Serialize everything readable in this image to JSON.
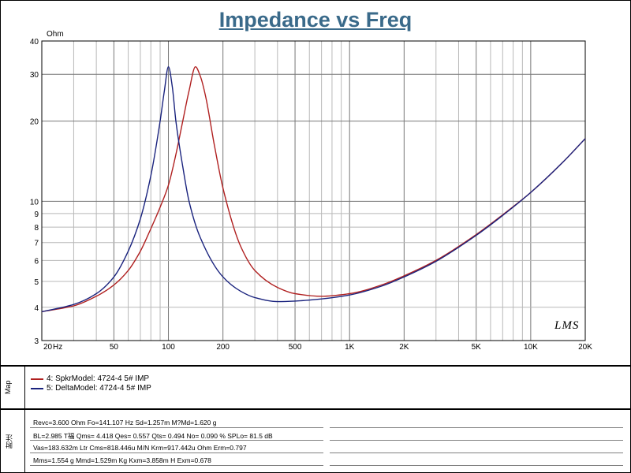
{
  "chart_data": {
    "type": "line",
    "title": "Impedance vs Freq",
    "xlabel": "Hz",
    "ylabel": "Ohm",
    "xscale": "log",
    "yscale": "log",
    "xlim": [
      20,
      20000
    ],
    "ylim": [
      3,
      40
    ],
    "grid": true,
    "x_tick_labels": [
      "20",
      "50",
      "100",
      "200",
      "500",
      "1K",
      "2K",
      "5K",
      "10K",
      "20K"
    ],
    "x_tick_values": [
      20,
      50,
      100,
      200,
      500,
      1000,
      2000,
      5000,
      10000,
      20000
    ],
    "y_tick_labels": [
      "3",
      "4",
      "5",
      "6",
      "7",
      "8",
      "9",
      "10",
      "20",
      "30",
      "40"
    ],
    "y_tick_values": [
      3,
      4,
      5,
      6,
      7,
      8,
      9,
      10,
      20,
      30,
      40
    ],
    "series": [
      {
        "name": "4: SpkrModel: 4724-4 5#  IMP",
        "color": "#b02020",
        "x": [
          20,
          30,
          40,
          50,
          60,
          70,
          80,
          90,
          100,
          110,
          120,
          130,
          141,
          150,
          160,
          180,
          200,
          250,
          300,
          400,
          500,
          700,
          1000,
          1500,
          2000,
          3000,
          5000,
          7000,
          10000,
          15000,
          20000
        ],
        "y": [
          3.85,
          4.05,
          4.4,
          4.85,
          5.5,
          6.5,
          7.9,
          9.5,
          11.5,
          15,
          20,
          26,
          32,
          29.5,
          25,
          16,
          11.2,
          6.8,
          5.5,
          4.75,
          4.5,
          4.4,
          4.5,
          4.85,
          5.25,
          6.0,
          7.5,
          8.9,
          10.8,
          14.0,
          17.2
        ]
      },
      {
        "name": "5: DeltaModel: 4724-4 5#  IMP",
        "color": "#1a237e",
        "x": [
          20,
          30,
          40,
          50,
          60,
          70,
          80,
          90,
          95,
          100,
          105,
          110,
          120,
          130,
          150,
          200,
          250,
          300,
          400,
          500,
          700,
          1000,
          1500,
          2000,
          3000,
          5000,
          7000,
          10000,
          15000,
          20000
        ],
        "y": [
          3.85,
          4.1,
          4.5,
          5.2,
          6.5,
          8.6,
          12.5,
          20,
          26,
          32,
          27,
          20,
          13.5,
          10,
          7.3,
          5.2,
          4.6,
          4.35,
          4.2,
          4.22,
          4.3,
          4.45,
          4.8,
          5.2,
          5.95,
          7.45,
          8.85,
          10.8,
          14.0,
          17.2
        ]
      }
    ]
  },
  "side_labels": {
    "map": "Map",
    "notes": "附注"
  },
  "logo_text": "LMS",
  "legend": [
    {
      "label": "4: SpkrModel: 4724-4 5#  IMP",
      "color": "#b02020"
    },
    {
      "label": "5: DeltaModel: 4724-4 5#  IMP",
      "color": "#1a237e"
    }
  ],
  "parameters": [
    "Revc=3.600 Ohm  Fo=141.107 Hz  Sd=1.257m M?Md=1.620 g",
    "BL=2.985 T福  Qms= 4.418  Qes= 0.557  Qts= 0.494  No= 0.090 %  SPLo= 81.5 dB",
    "Vas=183.632m Ltr  Cms=818.446u M/N  Krm=917.442u Ohm  Erm=0.797",
    "Mms=1.554 g  Mmd=1.529m Kg  Kxm=3.858m H  Exm=0.678"
  ]
}
